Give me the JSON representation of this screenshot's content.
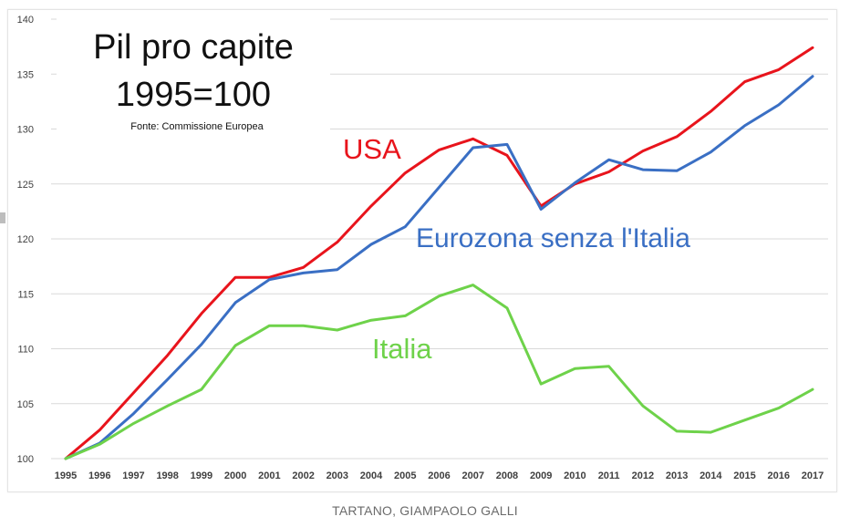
{
  "caption": "TARTANO, GIAMPAOLO GALLI",
  "chart_data": {
    "type": "line",
    "title": "Pil pro capite",
    "subtitle": "1995=100",
    "source": "Fonte: Commissione Europea",
    "xlabel": "",
    "ylabel": "",
    "x": [
      "1995",
      "1996",
      "1997",
      "1998",
      "1999",
      "2000",
      "2001",
      "2002",
      "2003",
      "2004",
      "2005",
      "2006",
      "2007",
      "2008",
      "2009",
      "2010",
      "2011",
      "2012",
      "2013",
      "2014",
      "2015",
      "2016",
      "2017"
    ],
    "ylim": [
      100,
      140
    ],
    "yticks": [
      100,
      105,
      110,
      115,
      120,
      125,
      130,
      135,
      140
    ],
    "grid": true,
    "legend": "inline labels",
    "series": [
      {
        "name": "USA",
        "color": "#e8141c",
        "values": [
          100,
          102.6,
          106.0,
          109.4,
          113.2,
          116.5,
          116.5,
          117.4,
          119.7,
          123.0,
          126.0,
          128.1,
          129.1,
          127.6,
          123.0,
          125.0,
          126.1,
          128.0,
          129.3,
          131.6,
          134.3,
          135.4,
          137.4
        ]
      },
      {
        "name": "Eurozona senza l'Italia",
        "color": "#3a6fc4",
        "values": [
          100,
          101.4,
          104.1,
          107.2,
          110.4,
          114.2,
          116.3,
          116.9,
          117.2,
          119.5,
          121.1,
          124.7,
          128.3,
          128.6,
          122.7,
          125.1,
          127.2,
          126.3,
          126.2,
          127.9,
          130.3,
          132.2,
          134.8
        ]
      },
      {
        "name": "Italia",
        "color": "#6ed24a",
        "values": [
          100,
          101.3,
          103.2,
          104.8,
          106.3,
          110.3,
          112.1,
          112.1,
          111.7,
          112.6,
          113.0,
          114.8,
          115.8,
          113.7,
          106.8,
          108.2,
          108.4,
          104.8,
          102.5,
          102.4,
          103.5,
          104.6,
          106.3
        ]
      }
    ]
  }
}
